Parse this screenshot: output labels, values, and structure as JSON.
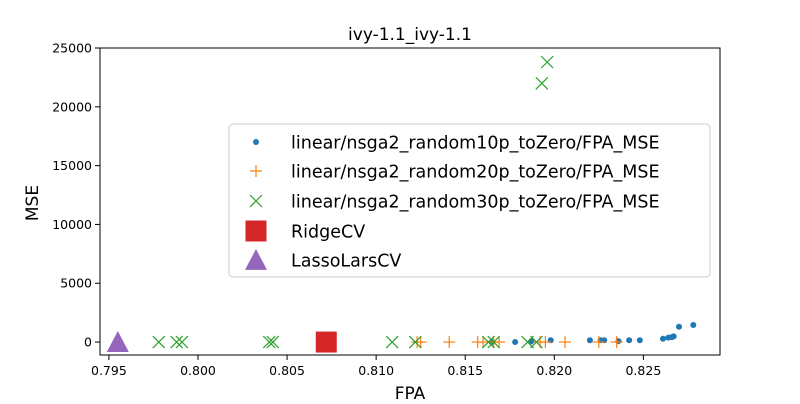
{
  "chart_data": {
    "type": "scatter",
    "title": "ivy-1.1_ivy-1.1",
    "xlabel": "FPA",
    "ylabel": "MSE",
    "xlim": [
      0.7945,
      0.8293
    ],
    "ylim": [
      -1100,
      25000
    ],
    "x_ticks": [
      0.795,
      0.8,
      0.805,
      0.81,
      0.815,
      0.82,
      0.825
    ],
    "x_tick_labels": [
      "0.795",
      "0.800",
      "0.805",
      "0.810",
      "0.815",
      "0.820",
      "0.825"
    ],
    "y_ticks": [
      0,
      5000,
      10000,
      15000,
      20000,
      25000
    ],
    "y_tick_labels": [
      "0",
      "5000",
      "10000",
      "15000",
      "20000",
      "25000"
    ],
    "grid": false,
    "legend_position": "center-right",
    "series": [
      {
        "name": "linear/nsga2_random10p_toZero/FPA_MSE",
        "marker": "dot",
        "color": "#1f77b4",
        "points": [
          [
            0.8165,
            0
          ],
          [
            0.8178,
            0
          ],
          [
            0.8187,
            60
          ],
          [
            0.8198,
            150
          ],
          [
            0.822,
            150
          ],
          [
            0.8226,
            150
          ],
          [
            0.8228,
            150
          ],
          [
            0.8236,
            80
          ],
          [
            0.8242,
            150
          ],
          [
            0.8248,
            150
          ],
          [
            0.8261,
            280
          ],
          [
            0.8264,
            380
          ],
          [
            0.8266,
            420
          ],
          [
            0.8267,
            480
          ],
          [
            0.827,
            1300
          ],
          [
            0.8278,
            1450
          ]
        ]
      },
      {
        "name": "linear/nsga2_random20p_toZero/FPA_MSE",
        "marker": "plus",
        "color": "#ff7f0e",
        "points": [
          [
            0.8123,
            0
          ],
          [
            0.8125,
            0
          ],
          [
            0.8141,
            0
          ],
          [
            0.8157,
            0
          ],
          [
            0.816,
            0
          ],
          [
            0.8166,
            0
          ],
          [
            0.8169,
            0
          ],
          [
            0.8192,
            0
          ],
          [
            0.8195,
            0
          ],
          [
            0.8206,
            0
          ],
          [
            0.8225,
            0
          ],
          [
            0.8235,
            0
          ]
        ]
      },
      {
        "name": "linear/nsga2_random30p_toZero/FPA_MSE",
        "marker": "x",
        "color": "#2ca02c",
        "points": [
          [
            0.7978,
            0
          ],
          [
            0.7988,
            0
          ],
          [
            0.7991,
            0
          ],
          [
            0.804,
            0
          ],
          [
            0.8042,
            0
          ],
          [
            0.8109,
            0
          ],
          [
            0.8122,
            0
          ],
          [
            0.8163,
            0
          ],
          [
            0.8166,
            0
          ],
          [
            0.8185,
            0
          ],
          [
            0.819,
            0
          ],
          [
            0.8193,
            22000
          ],
          [
            0.8196,
            23800
          ]
        ]
      },
      {
        "name": "RidgeCV",
        "marker": "square",
        "color": "#d62728",
        "points": [
          [
            0.8072,
            0
          ]
        ]
      },
      {
        "name": "LassoLarsCV",
        "marker": "triangle",
        "color": "#9467bd",
        "points": [
          [
            0.7955,
            0
          ]
        ]
      }
    ]
  }
}
